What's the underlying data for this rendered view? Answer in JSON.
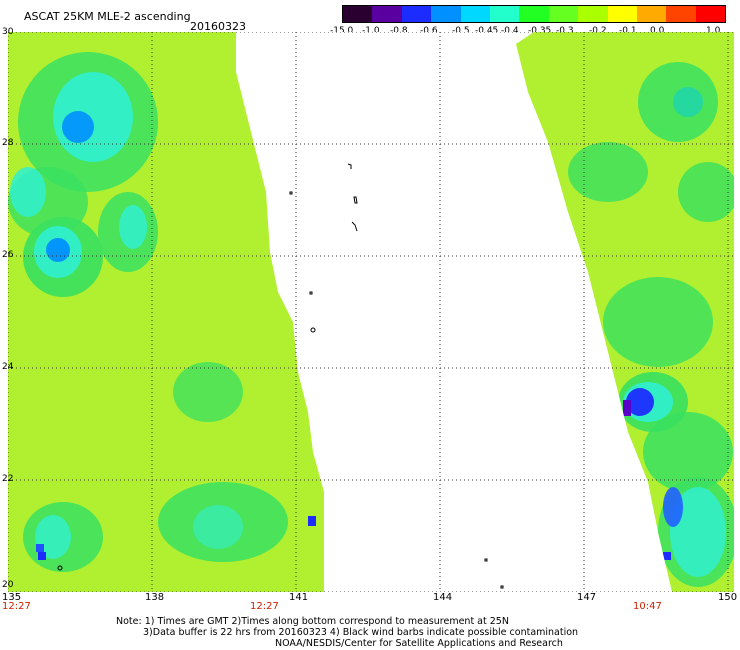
{
  "header": {
    "title": "ASCAT 25KM MLE-2 ascending",
    "date": "20160323"
  },
  "colorbar": {
    "labels": [
      "-15.0",
      "-1.0",
      "-0.8",
      "-0.6",
      "-0.5",
      "-0.45",
      "-0.4",
      "-0.35",
      "-0.3",
      "-0.2",
      "-0.1",
      "0.0",
      "1.0"
    ],
    "colors": [
      "#2a0030",
      "#5a00a0",
      "#1c2cff",
      "#0090ff",
      "#00d8ff",
      "#22ffcc",
      "#22ff22",
      "#66ff22",
      "#aaff00",
      "#ffff00",
      "#ffaa00",
      "#ff4400",
      "#ff0000"
    ]
  },
  "axes": {
    "lat_labels": [
      "30",
      "28",
      "26",
      "24",
      "22",
      "20"
    ],
    "lon_labels": [
      "135",
      "138",
      "141",
      "144",
      "147",
      "150"
    ]
  },
  "times": {
    "t1": "12:27",
    "t2": "12:27",
    "t3": "10:47"
  },
  "notes": {
    "line1": "Note: 1) Times are GMT 2)Times along bottom correspond to measurement at 25N",
    "line2": "3)Data buffer is 22 hrs from 20160323 4) Black wind barbs indicate possible contamination",
    "line3": "NOAA/NESDIS/Center for Satellite Applications and Research"
  },
  "palette": {
    "base": "#b0f030",
    "green": "#38e060",
    "cyan": "#30f0d0",
    "blue": "#1c2cff",
    "purple": "#5a00c8",
    "grid": "#333333"
  }
}
